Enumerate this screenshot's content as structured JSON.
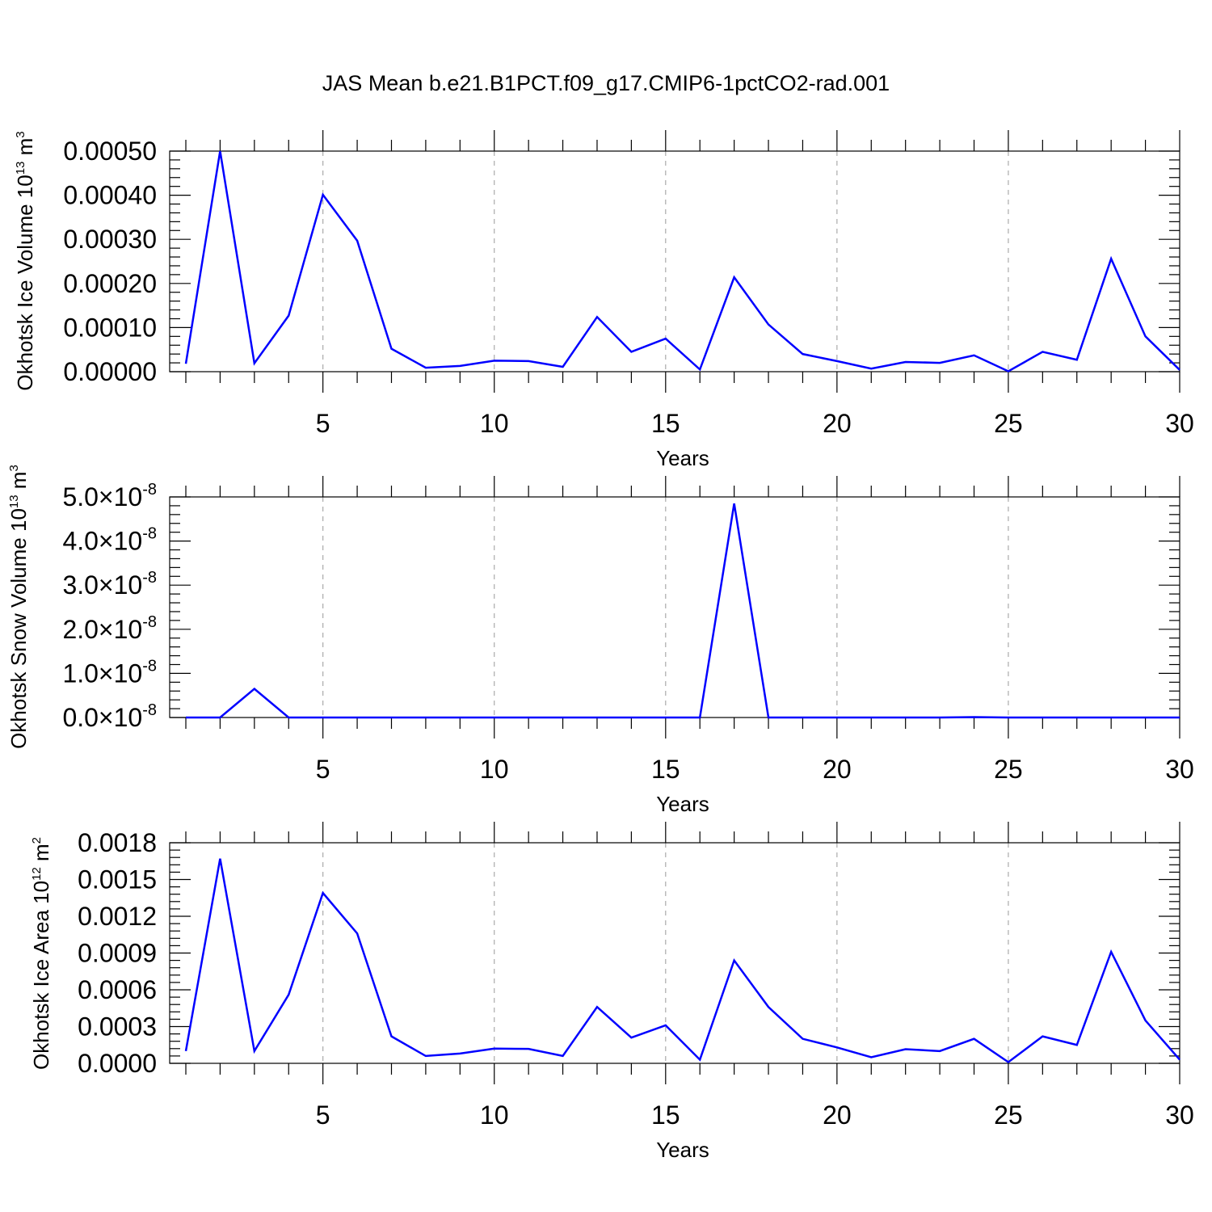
{
  "title": "JAS Mean b.e21.B1PCT.f09_g17.CMIP6-1pctCO2-rad.001",
  "colors": {
    "line": "#0000ff",
    "axis": "#000000",
    "grid": "#aaaaaa"
  },
  "chart_data": [
    {
      "type": "line",
      "title": "JAS Mean b.e21.B1PCT.f09_g17.CMIP6-1pctCO2-rad.001",
      "xlabel": "Years",
      "ylabel": {
        "text": "Okhotsk Ice Volume 10",
        "exp": "13",
        "unit": "m",
        "unit_exp": "3"
      },
      "xlim": [
        1,
        30
      ],
      "ylim": [
        0,
        0.0005
      ],
      "xticks": [
        "5",
        "10",
        "15",
        "20",
        "25",
        "30"
      ],
      "yticks": [
        "0.00000",
        "0.00010",
        "0.00020",
        "0.00030",
        "0.00040",
        "0.00050"
      ],
      "grid": "vertical dashed",
      "x": [
        1,
        2,
        3,
        4,
        5,
        6,
        7,
        8,
        9,
        10,
        11,
        12,
        13,
        14,
        15,
        16,
        17,
        18,
        19,
        20,
        21,
        22,
        23,
        24,
        25,
        26,
        27,
        28,
        29,
        30
      ],
      "series": [
        {
          "values": [
            1.8e-05,
            0.0005,
            1.9e-05,
            0.000127,
            0.000401,
            0.000297,
            5.2e-05,
            9e-06,
            1.3e-05,
            2.5e-05,
            2.4e-05,
            1.1e-05,
            0.000124,
            4.5e-05,
            7.5e-05,
            5e-06,
            0.000214,
            0.000107,
            4e-05,
            2.4e-05,
            7e-06,
            2.2e-05,
            2e-05,
            3.7e-05,
            1e-06,
            4.5e-05,
            2.7e-05,
            0.000256,
            8e-05,
            4e-06
          ]
        }
      ]
    },
    {
      "type": "line",
      "xlabel": "Years",
      "ylabel": {
        "text": "Okhotsk Snow Volume 10",
        "exp": "13",
        "unit": "m",
        "unit_exp": "3"
      },
      "xlim": [
        1,
        30
      ],
      "ylim": [
        0,
        5e-08
      ],
      "xticks": [
        "5",
        "10",
        "15",
        "20",
        "25",
        "30"
      ],
      "yticks": [
        {
          "mant": "0.0",
          "exp": "-8"
        },
        {
          "mant": "1.0",
          "exp": "-8"
        },
        {
          "mant": "2.0",
          "exp": "-8"
        },
        {
          "mant": "3.0",
          "exp": "-8"
        },
        {
          "mant": "4.0",
          "exp": "-8"
        },
        {
          "mant": "5.0",
          "exp": "-8"
        }
      ],
      "grid": "vertical dashed",
      "x": [
        1,
        2,
        3,
        4,
        5,
        6,
        7,
        8,
        9,
        10,
        11,
        12,
        13,
        14,
        15,
        16,
        17,
        18,
        19,
        20,
        21,
        22,
        23,
        24,
        25,
        26,
        27,
        28,
        29,
        30
      ],
      "series": [
        {
          "values": [
            0,
            0,
            6.5e-09,
            0,
            0,
            0,
            0,
            0,
            0,
            0,
            0,
            0,
            0,
            0,
            0,
            0,
            4.85e-08,
            0,
            0,
            0,
            0,
            0,
            0,
            1e-10,
            0,
            0,
            0,
            0,
            0,
            0
          ]
        }
      ]
    },
    {
      "type": "line",
      "xlabel": "Years",
      "ylabel": {
        "text": "Okhotsk Ice Area 10",
        "exp": "12",
        "unit": "m",
        "unit_exp": "2"
      },
      "xlim": [
        1,
        30
      ],
      "ylim": [
        0,
        0.0018
      ],
      "xticks": [
        "5",
        "10",
        "15",
        "20",
        "25",
        "30"
      ],
      "yticks": [
        "0.0000",
        "0.0003",
        "0.0006",
        "0.0009",
        "0.0012",
        "0.0015",
        "0.0018"
      ],
      "grid": "vertical dashed",
      "x": [
        1,
        2,
        3,
        4,
        5,
        6,
        7,
        8,
        9,
        10,
        11,
        12,
        13,
        14,
        15,
        16,
        17,
        18,
        19,
        20,
        21,
        22,
        23,
        24,
        25,
        26,
        27,
        28,
        29,
        30
      ],
      "series": [
        {
          "values": [
            0.0001,
            0.00167,
            0.0001,
            0.00056,
            0.00139,
            0.00106,
            0.00022,
            6e-05,
            8e-05,
            0.00012,
            0.000118,
            6e-05,
            0.00046,
            0.00021,
            0.00031,
            3e-05,
            0.00084,
            0.00046,
            0.0002,
            0.00013,
            5e-05,
            0.000115,
            0.0001,
            0.0002,
            1e-05,
            0.00022,
            0.00015,
            0.00091,
            0.00035,
            3e-05
          ]
        }
      ]
    }
  ]
}
